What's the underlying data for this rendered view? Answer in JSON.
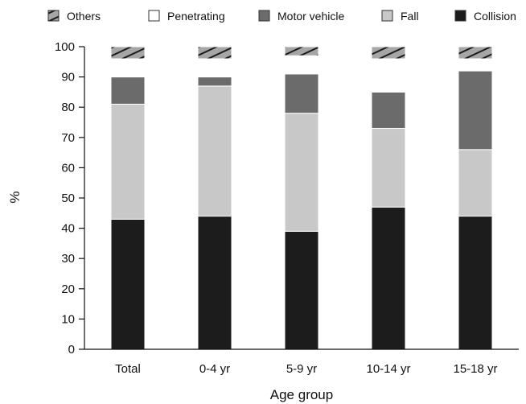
{
  "chart_data": {
    "type": "bar",
    "stacked": true,
    "title": "",
    "xlabel": "Age group",
    "ylabel": "%",
    "ylim": [
      0,
      100
    ],
    "yticks": [
      0,
      10,
      20,
      30,
      40,
      50,
      60,
      70,
      80,
      90,
      100
    ],
    "categories": [
      "Total",
      "0-4 yr",
      "5-9 yr",
      "10-14 yr",
      "15-18 yr"
    ],
    "series": [
      {
        "name": "Collision",
        "values": [
          43,
          44,
          39,
          47,
          44
        ],
        "color": "#1c1c1c",
        "pattern": "solid"
      },
      {
        "name": "Fall",
        "values": [
          38,
          43,
          39,
          26,
          22
        ],
        "color": "#c8c8c8",
        "pattern": "solid"
      },
      {
        "name": "Motor vehicle",
        "values": [
          9,
          3,
          13,
          12,
          26
        ],
        "color": "#6b6b6b",
        "pattern": "solid"
      },
      {
        "name": "Penetrating",
        "values": [
          6,
          6,
          6,
          11,
          4
        ],
        "color": "#ffffff",
        "pattern": "solid"
      },
      {
        "name": "Others",
        "values": [
          4,
          4,
          3,
          4,
          4
        ],
        "color": "#a6a6a6",
        "pattern": "diagonal-hatch"
      }
    ],
    "legend": {
      "position": "top",
      "order": [
        "Others",
        "Penetrating",
        "Motor vehicle",
        "Fall",
        "Collision"
      ]
    },
    "grid": false
  }
}
